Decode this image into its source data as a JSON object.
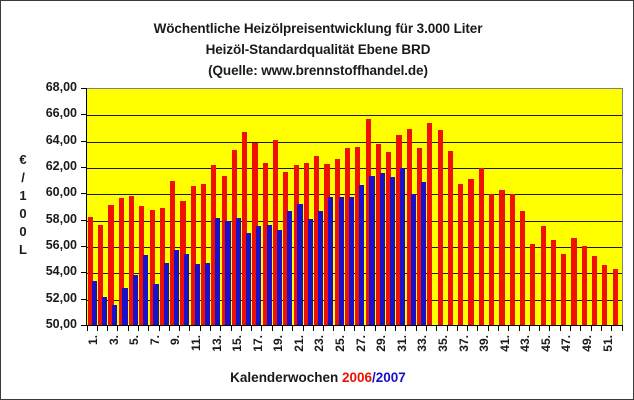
{
  "chart_data": {
    "type": "bar",
    "title": "Wöchentliche Heizölpreisentwicklung für 3.000 Liter",
    "subtitle": "Heizöl-Standardqualität Ebene BRD",
    "source": "(Quelle: www.brennstoffhandel.de)",
    "xlabel": "Kalenderwochen 2006/2007",
    "xlabel_parts": {
      "prefix": "Kalenderwochen ",
      "year1": "2006",
      "sep": "/",
      "year2": "2007"
    },
    "ylabel": "€/100L",
    "ylabel_chars": [
      "€",
      "/",
      "1",
      "0",
      "0",
      "L"
    ],
    "ylim": [
      50,
      68
    ],
    "ytick_step": 2,
    "ytick_labels": [
      "68,00",
      "66,00",
      "64,00",
      "62,00",
      "60,00",
      "58,00",
      "56,00",
      "54,00",
      "52,00",
      "50,00"
    ],
    "grid": true,
    "plot_background": "#FFFF00",
    "categories": [
      "1.",
      "2.",
      "3.",
      "4.",
      "5.",
      "6.",
      "7.",
      "8.",
      "9.",
      "10.",
      "11.",
      "12.",
      "13.",
      "14.",
      "15.",
      "16.",
      "17.",
      "18.",
      "19.",
      "20.",
      "21.",
      "22.",
      "23.",
      "24.",
      "25.",
      "26.",
      "27.",
      "28.",
      "29.",
      "30.",
      "31.",
      "32.",
      "33.",
      "34.",
      "35.",
      "36.",
      "37.",
      "38.",
      "39.",
      "40.",
      "41.",
      "42.",
      "43.",
      "44.",
      "45.",
      "46.",
      "47.",
      "48.",
      "49.",
      "50.",
      "51.",
      "52."
    ],
    "xtick_labels_shown": [
      "1.",
      "3.",
      "5.",
      "7.",
      "9.",
      "11.",
      "13.",
      "15.",
      "17.",
      "19.",
      "21.",
      "23.",
      "25.",
      "27.",
      "29.",
      "31.",
      "33.",
      "35.",
      "37.",
      "39.",
      "41.",
      "43.",
      "45.",
      "47.",
      "49.",
      "51."
    ],
    "series": [
      {
        "name": "2006",
        "color": "#EE1100",
        "values": [
          58.3,
          57.7,
          59.2,
          59.7,
          59.9,
          59.1,
          58.8,
          59.0,
          61.0,
          59.5,
          60.6,
          60.8,
          62.2,
          61.4,
          63.4,
          64.7,
          63.9,
          62.4,
          64.1,
          61.7,
          62.2,
          62.4,
          62.9,
          62.3,
          62.7,
          63.5,
          63.6,
          65.7,
          63.8,
          63.2,
          64.5,
          65.0,
          63.5,
          65.4,
          64.9,
          63.3,
          60.8,
          61.2,
          62.0,
          60.0,
          60.3,
          60.0,
          58.7,
          56.2,
          57.6,
          56.5,
          55.5,
          56.7,
          56.1,
          55.3,
          54.6,
          54.3
        ]
      },
      {
        "name": "2007",
        "color": "#1A10CC",
        "values": [
          53.4,
          52.2,
          51.6,
          52.9,
          53.9,
          55.4,
          53.2,
          54.8,
          55.8,
          55.5,
          54.7,
          54.8,
          58.2,
          58.0,
          58.2,
          57.1,
          57.6,
          57.7,
          57.3,
          58.7,
          59.3,
          58.1,
          58.7,
          59.8,
          59.8,
          59.8,
          60.7,
          61.4,
          61.6,
          61.3,
          62.0,
          60.0,
          60.9
        ]
      }
    ]
  }
}
